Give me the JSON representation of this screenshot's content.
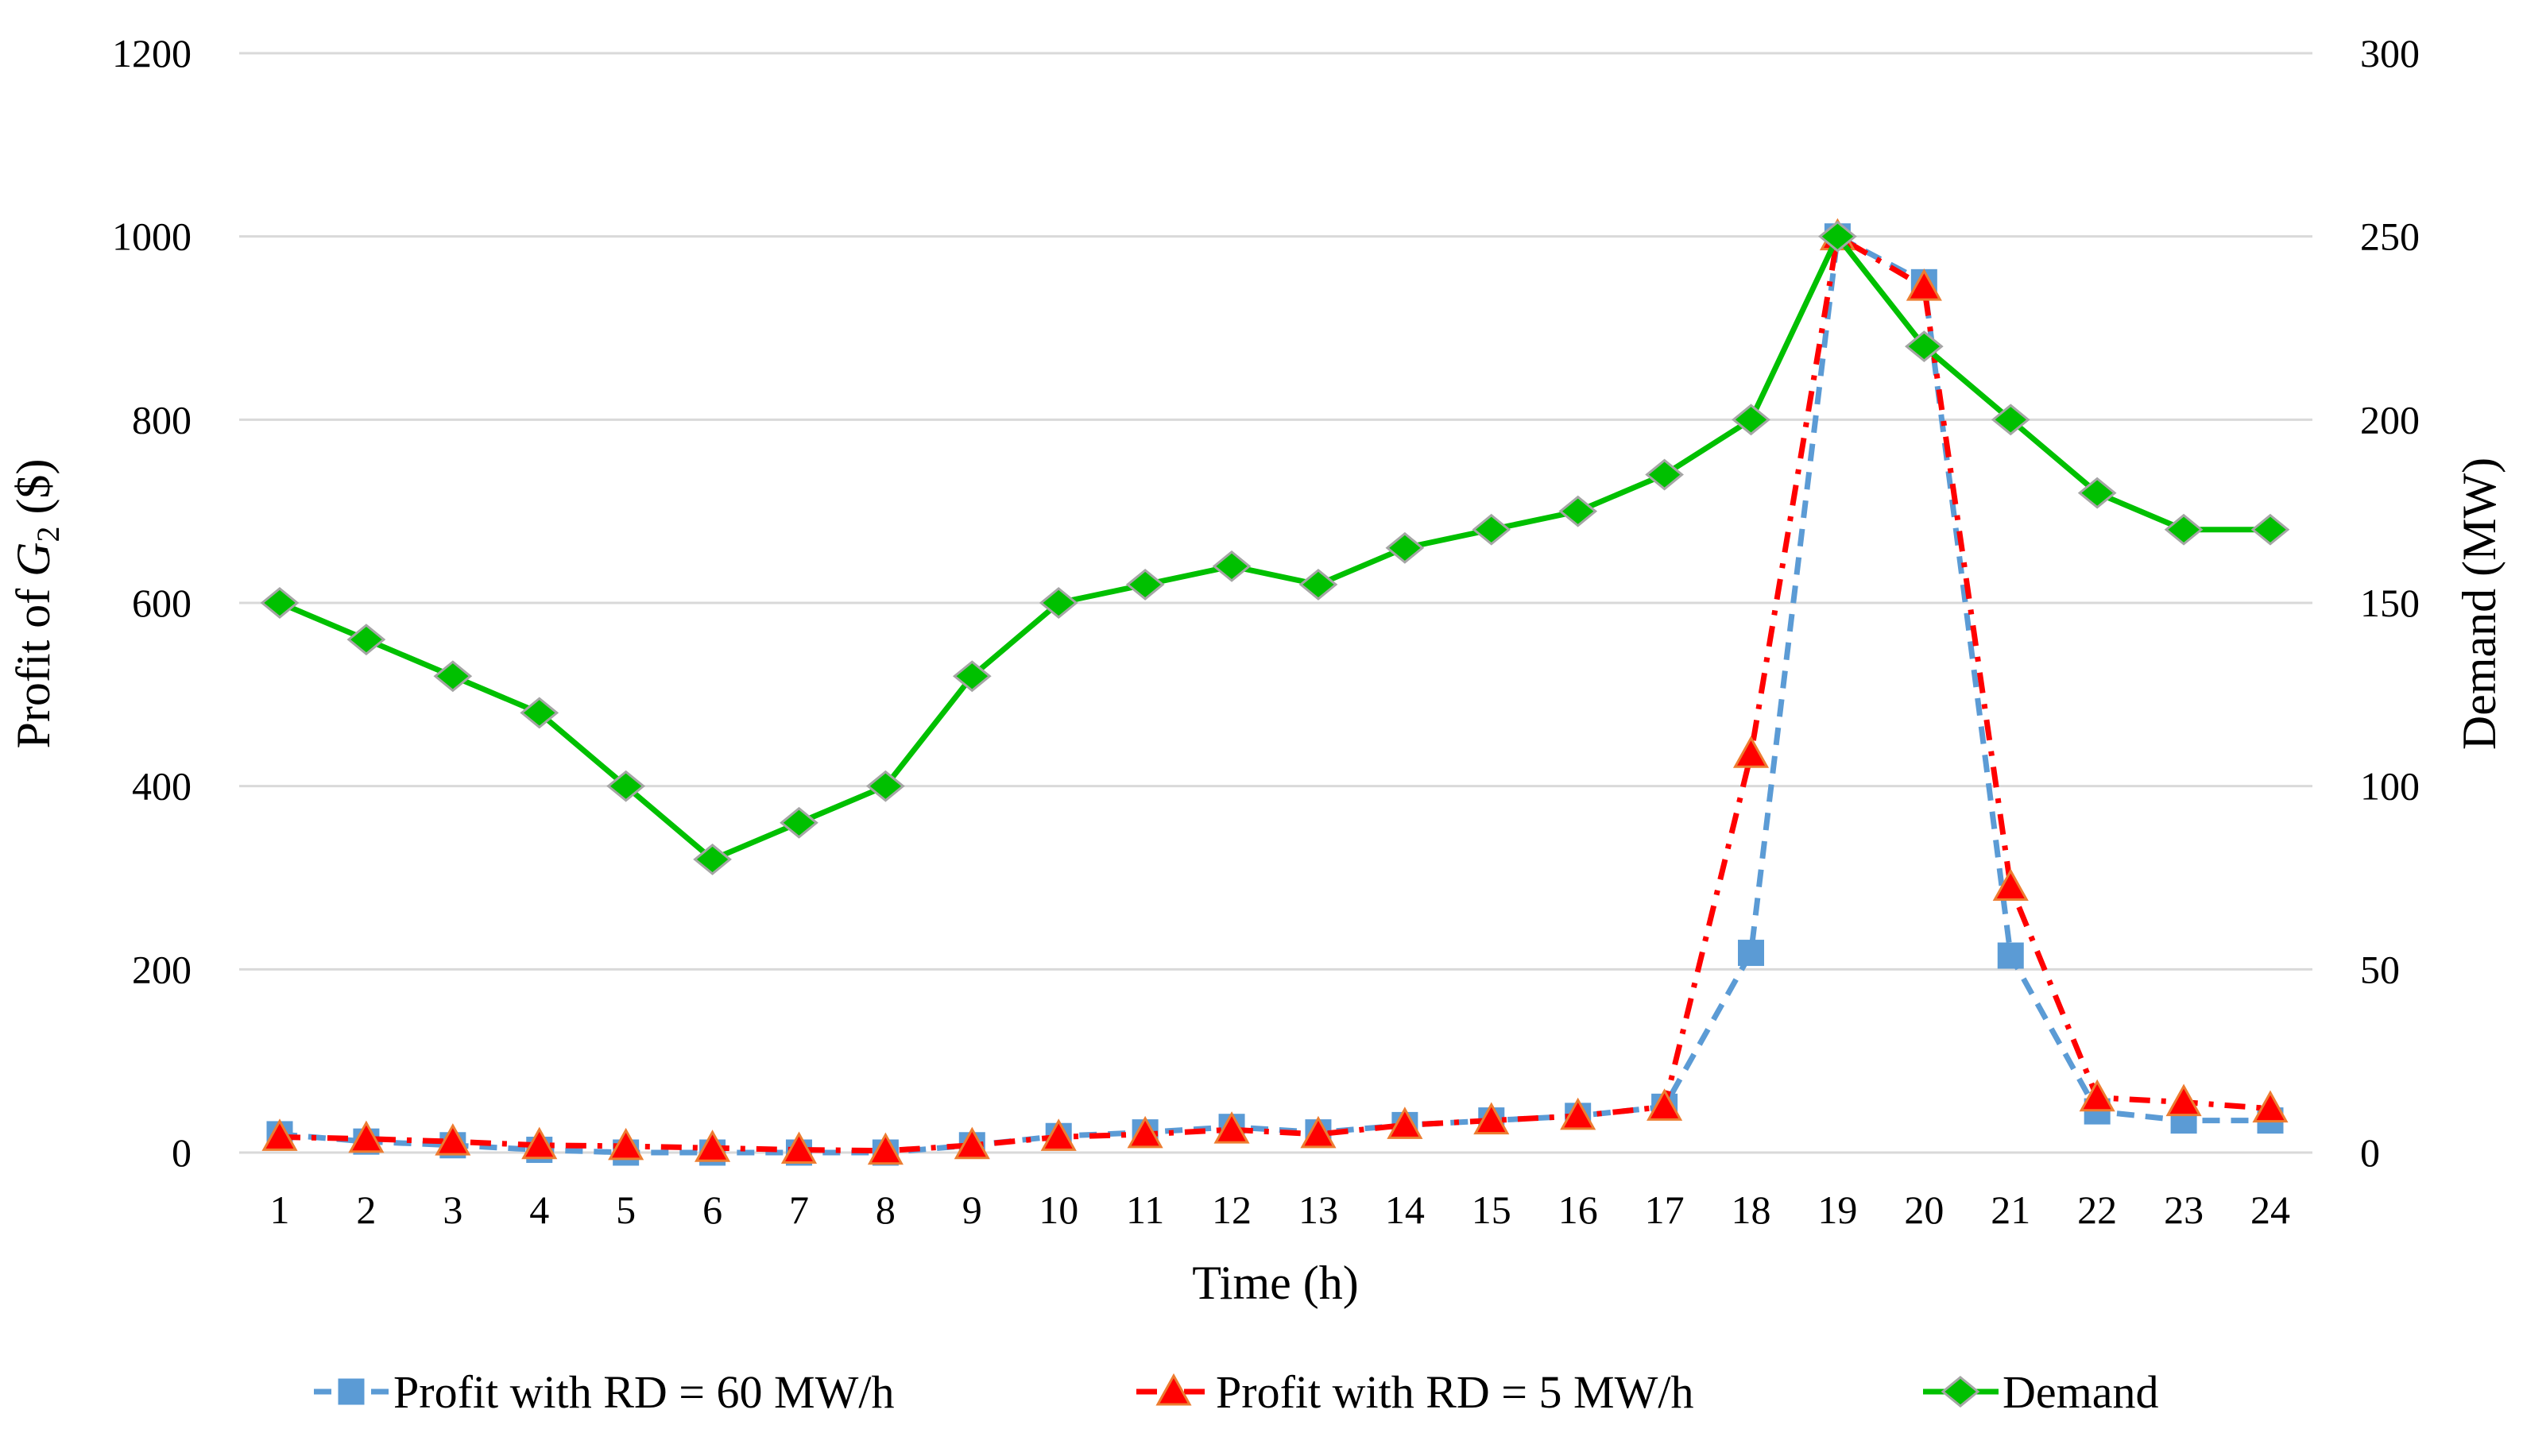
{
  "chart_data": {
    "type": "line",
    "xlabel": "Time (h)",
    "ylabel": "Profit of G2 ($)",
    "ylabel_parts": {
      "pre": "Profit of ",
      "var": "G",
      "sub": "2",
      "post": " ($)"
    },
    "y2label": "Demand (MW)",
    "x": [
      1,
      2,
      3,
      4,
      5,
      6,
      7,
      8,
      9,
      10,
      11,
      12,
      13,
      14,
      15,
      16,
      17,
      18,
      19,
      20,
      21,
      22,
      23,
      24
    ],
    "ylim": [
      0,
      1200
    ],
    "yticks": [
      0,
      200,
      400,
      600,
      800,
      1000,
      1200
    ],
    "y2lim": [
      0,
      300
    ],
    "y2ticks": [
      0,
      50,
      100,
      150,
      200,
      250,
      300
    ],
    "grid": true,
    "legend_position": "bottom",
    "series": [
      {
        "name": "Profit with RD = 60 MW/h",
        "axis": "left",
        "color": "#5b9bd5",
        "marker": "square",
        "line": "dashed",
        "values": [
          20,
          12,
          8,
          3,
          0,
          0,
          0,
          0,
          8,
          18,
          22,
          28,
          22,
          30,
          35,
          40,
          50,
          218,
          1000,
          950,
          215,
          45,
          35,
          35
        ]
      },
      {
        "name": "Profit with RD = 5 MW/h",
        "axis": "left",
        "color": "#ff0000",
        "marker": "triangle",
        "line": "dash-dot",
        "values": [
          17,
          15,
          12,
          8,
          7,
          5,
          3,
          2,
          8,
          17,
          20,
          25,
          20,
          30,
          35,
          40,
          50,
          435,
          1000,
          945,
          290,
          60,
          55,
          48
        ]
      },
      {
        "name": "Demand",
        "axis": "right",
        "color": "#00c000",
        "marker": "diamond",
        "line": "solid",
        "values": [
          150,
          140,
          130,
          120,
          100,
          80,
          90,
          100,
          130,
          150,
          155,
          160,
          155,
          165,
          170,
          175,
          185,
          200,
          250,
          220,
          200,
          180,
          170,
          170
        ]
      }
    ]
  }
}
